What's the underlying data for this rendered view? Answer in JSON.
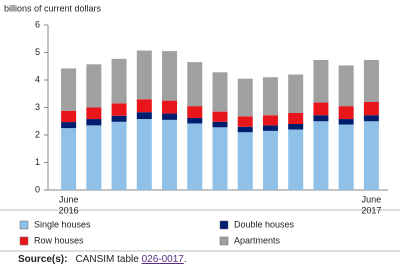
{
  "chart_data": {
    "type": "stacked_bar",
    "y_label": "billions of current dollars",
    "categories": [
      "June",
      null,
      null,
      null,
      null,
      null,
      null,
      null,
      null,
      null,
      null,
      null,
      "June"
    ],
    "year_labels": [
      "2016",
      null,
      null,
      null,
      null,
      null,
      null,
      null,
      null,
      null,
      null,
      null,
      "2017"
    ],
    "ylim": [
      0,
      6
    ],
    "yticks": [
      0,
      1,
      2,
      3,
      4,
      5,
      6
    ],
    "series": [
      {
        "name": "Single houses",
        "color": "#8fc1e8",
        "values": [
          2.25,
          2.35,
          2.48,
          2.58,
          2.55,
          2.42,
          2.28,
          2.1,
          2.15,
          2.2,
          2.5,
          2.38,
          2.5
        ]
      },
      {
        "name": "Double houses",
        "color": "#001e6e",
        "values": [
          0.22,
          0.23,
          0.22,
          0.25,
          0.23,
          0.2,
          0.2,
          0.2,
          0.2,
          0.2,
          0.22,
          0.2,
          0.22
        ]
      },
      {
        "name": "Row houses",
        "color": "#e8161b",
        "values": [
          0.41,
          0.42,
          0.45,
          0.47,
          0.47,
          0.43,
          0.37,
          0.38,
          0.37,
          0.4,
          0.46,
          0.47,
          0.48
        ]
      },
      {
        "name": "Apartments",
        "color": "#a0a0a0",
        "values": [
          1.54,
          1.57,
          1.62,
          1.77,
          1.8,
          1.6,
          1.43,
          1.37,
          1.38,
          1.4,
          1.55,
          1.48,
          1.53
        ]
      }
    ]
  },
  "source": {
    "label": "Source(s):",
    "text": "CANSIM table",
    "link": "026-0017",
    "end": "."
  }
}
